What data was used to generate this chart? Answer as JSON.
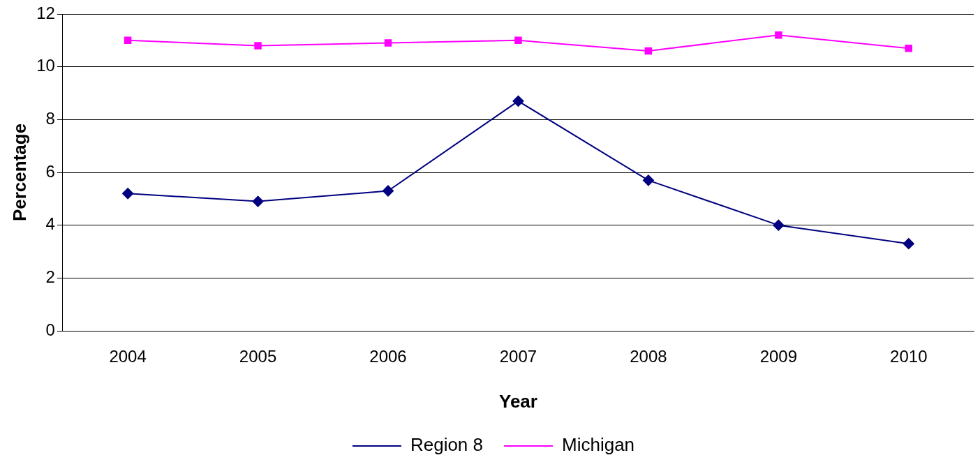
{
  "chart_data": {
    "type": "line",
    "xlabel": "Year",
    "ylabel": "Percentage",
    "categories": [
      "2004",
      "2005",
      "2006",
      "2007",
      "2008",
      "2009",
      "2010"
    ],
    "series": [
      {
        "name": "Region 8",
        "color": "#000080",
        "marker": "diamond",
        "values": [
          5.2,
          4.9,
          5.3,
          8.7,
          5.7,
          4.0,
          3.3
        ]
      },
      {
        "name": "Michigan",
        "color": "#ff00ff",
        "marker": "square",
        "values": [
          11.0,
          10.8,
          10.9,
          11.0,
          10.6,
          11.2,
          10.7
        ]
      }
    ],
    "ylim": [
      0,
      12
    ],
    "yticks": [
      0,
      2,
      4,
      6,
      8,
      10,
      12
    ],
    "grid": "y",
    "legend": "bottom",
    "line_style": "solid"
  }
}
